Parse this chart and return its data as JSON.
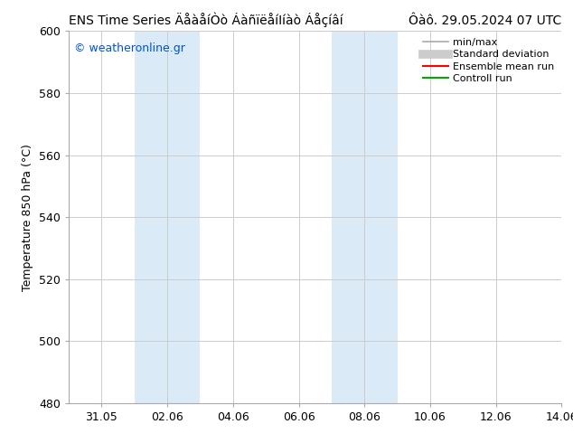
{
  "title_left": "ENS Time Series ÄåàåíÒò ÁàñïëåíΙíàò Áåçíâí",
  "title_right": "Ôàô. 29.05.2024 07 UTC",
  "ylabel": "Temperature 850 hPa (°C)",
  "ylim": [
    480,
    600
  ],
  "yticks": [
    480,
    500,
    520,
    540,
    560,
    580,
    600
  ],
  "xtick_labels": [
    "31.05",
    "02.06",
    "04.06",
    "06.06",
    "08.06",
    "10.06",
    "12.06",
    "14.06"
  ],
  "xtick_positions": [
    1,
    3,
    5,
    7,
    9,
    11,
    13,
    15
  ],
  "x_min": 0,
  "x_max": 15,
  "shade_bands": [
    {
      "start_day": 2,
      "end_day": 4,
      "color": "#daeaf7"
    },
    {
      "start_day": 8,
      "end_day": 10,
      "color": "#daeaf7"
    }
  ],
  "watermark": "© weatheronline.gr",
  "watermark_color": "#0055cc",
  "background_color": "#ffffff",
  "plot_bg_color": "#ffffff",
  "grid_color": "#cccccc",
  "spine_color": "#aaaaaa",
  "legend_items": [
    {
      "label": "min/max",
      "color": "#aaaaaa",
      "lw": 1.2,
      "style": "solid"
    },
    {
      "label": "Standard deviation",
      "color": "#cccccc",
      "lw": 7,
      "style": "solid"
    },
    {
      "label": "Ensemble mean run",
      "color": "#ff0000",
      "lw": 1.5,
      "style": "solid"
    },
    {
      "label": "Controll run",
      "color": "#00aa00",
      "lw": 1.5,
      "style": "solid"
    }
  ],
  "title_fontsize": 10,
  "ylabel_fontsize": 9,
  "tick_fontsize": 9,
  "legend_fontsize": 8,
  "watermark_fontsize": 9
}
